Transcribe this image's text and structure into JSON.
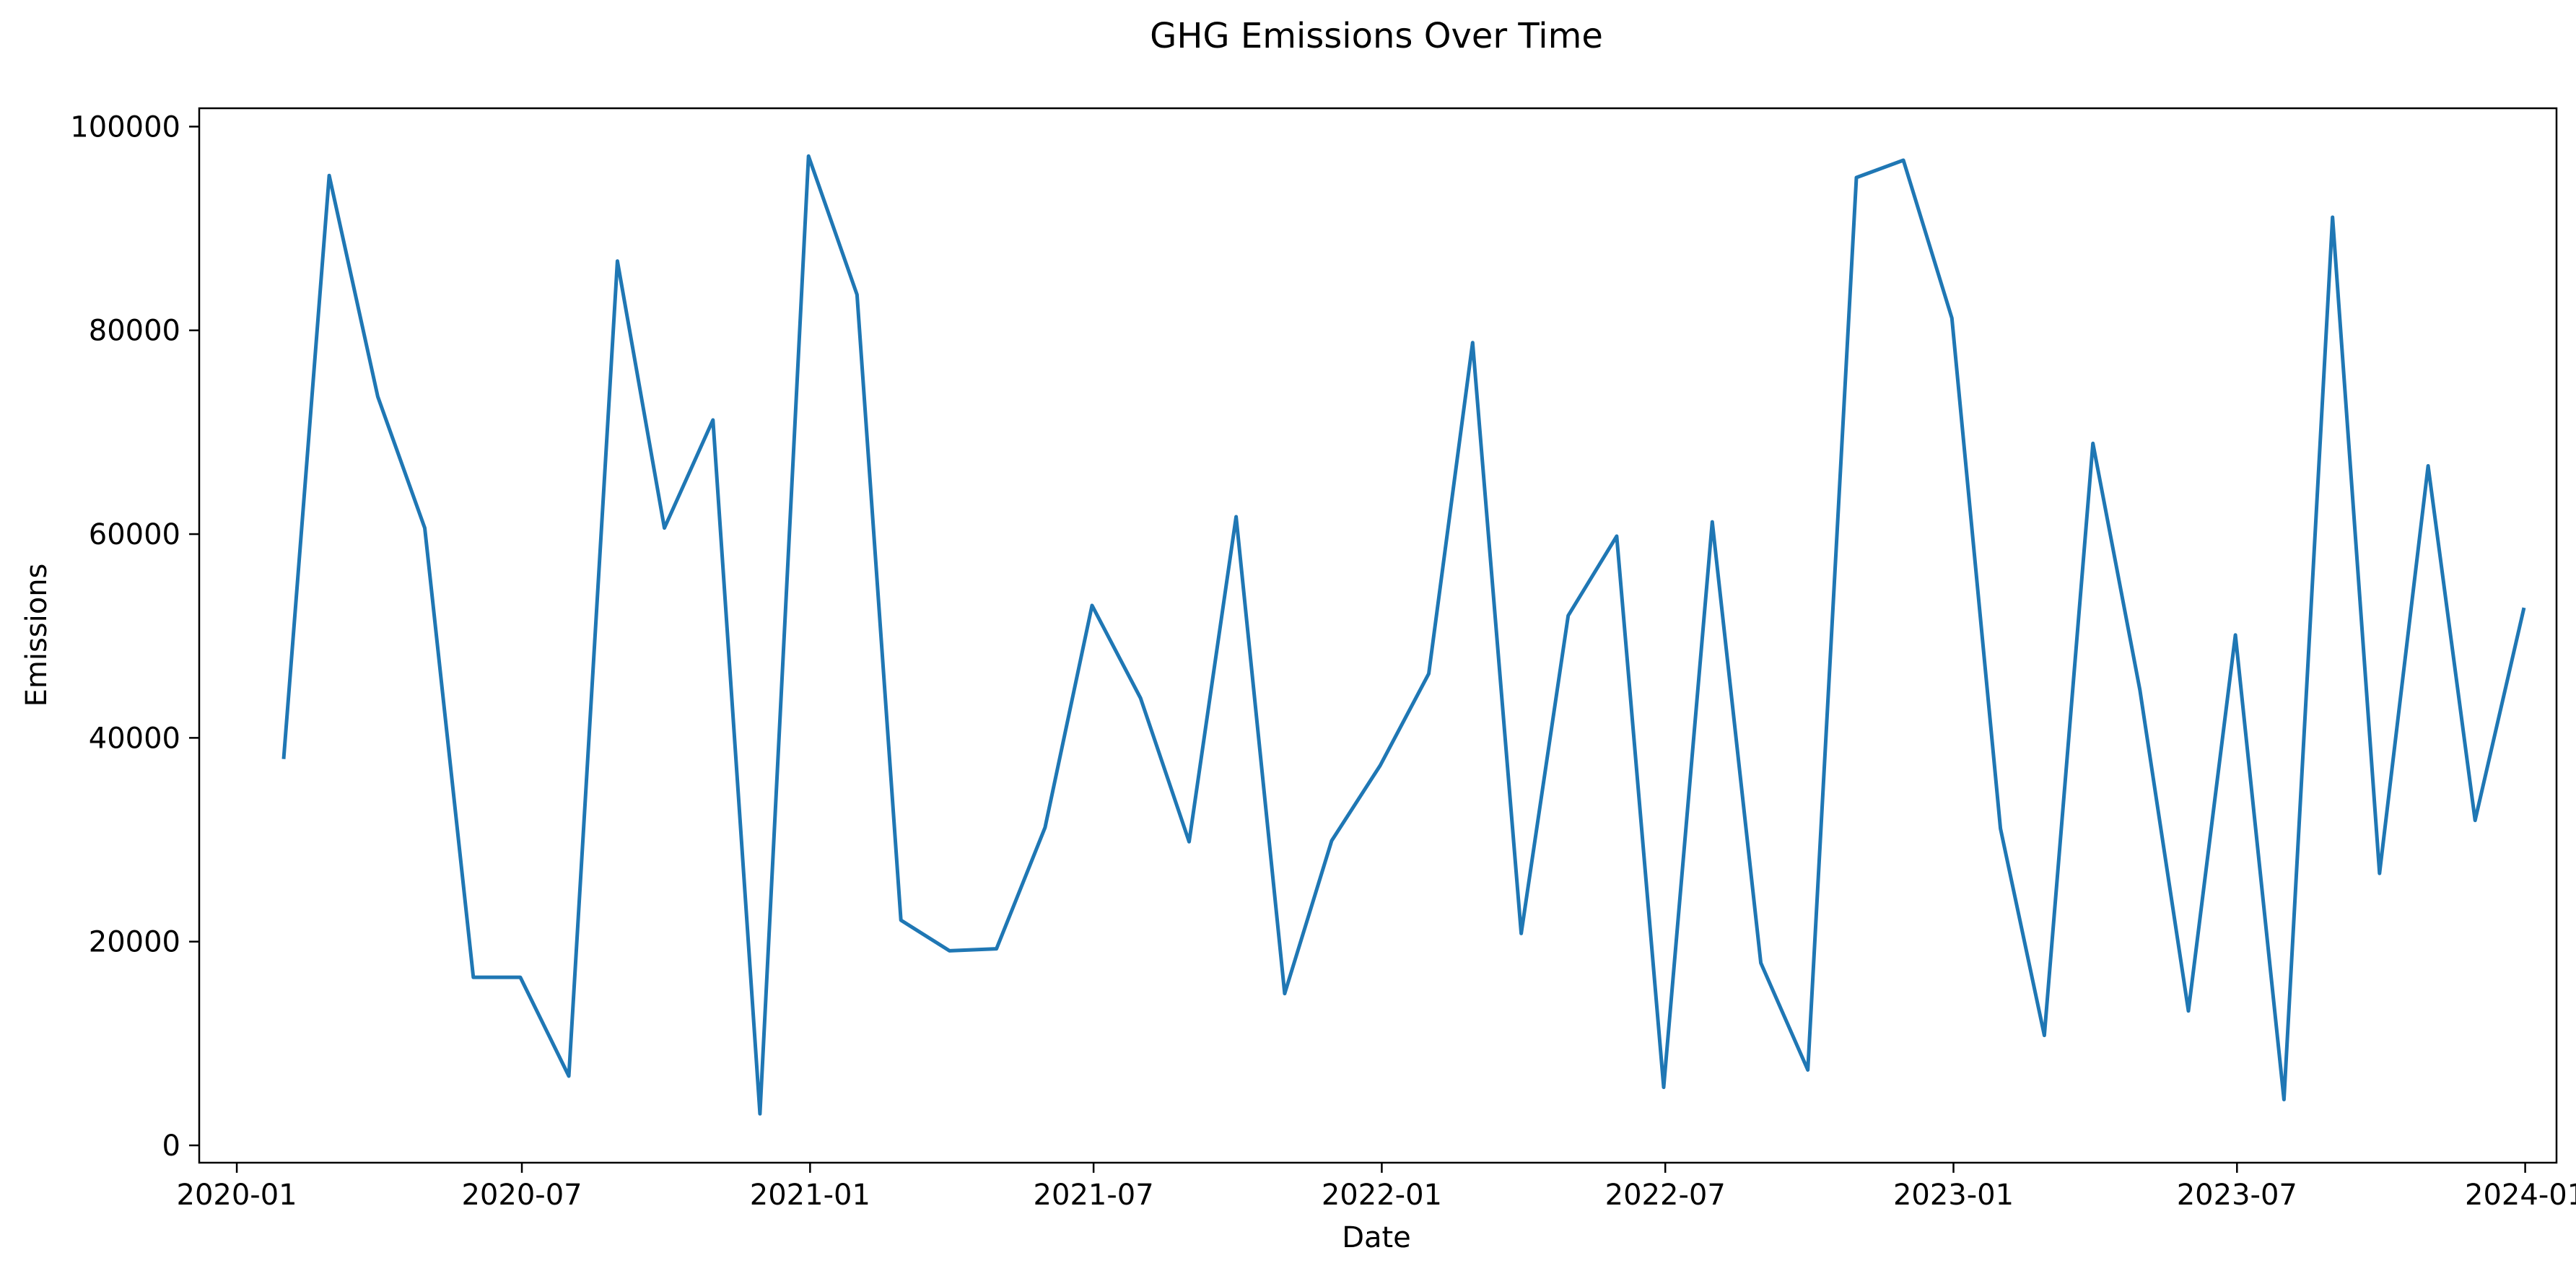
{
  "chart_data": {
    "type": "line",
    "title": "GHG Emissions Over Time",
    "xlabel": "Date",
    "ylabel": "Emissions",
    "xlim": [
      "2019-12-08",
      "2024-01-21"
    ],
    "ylim": [
      -1700,
      101800
    ],
    "x_ticks": [
      "2020-01",
      "2020-07",
      "2021-01",
      "2021-07",
      "2022-01",
      "2022-07",
      "2023-01",
      "2023-07",
      "2024-01"
    ],
    "y_ticks": [
      0,
      20000,
      40000,
      60000,
      80000,
      100000
    ],
    "grid": false,
    "legend": "none",
    "series": [
      {
        "color": "#1f77b4",
        "x": [
          "2020-01-31",
          "2020-02-29",
          "2020-03-31",
          "2020-04-30",
          "2020-05-31",
          "2020-06-30",
          "2020-07-31",
          "2020-08-31",
          "2020-09-30",
          "2020-10-31",
          "2020-11-30",
          "2020-12-31",
          "2021-01-31",
          "2021-02-28",
          "2021-03-31",
          "2021-04-30",
          "2021-05-31",
          "2021-06-30",
          "2021-07-31",
          "2021-08-31",
          "2021-09-30",
          "2021-10-31",
          "2021-11-30",
          "2021-12-31",
          "2022-01-31",
          "2022-02-28",
          "2022-03-31",
          "2022-04-30",
          "2022-05-31",
          "2022-06-30",
          "2022-07-31",
          "2022-08-31",
          "2022-09-30",
          "2022-10-31",
          "2022-11-30",
          "2022-12-31",
          "2023-01-31",
          "2023-02-28",
          "2023-03-31",
          "2023-04-30",
          "2023-05-31",
          "2023-06-30",
          "2023-07-31",
          "2023-08-31",
          "2023-09-30",
          "2023-10-31",
          "2023-11-30",
          "2023-12-31"
        ],
        "y": [
          38100,
          95200,
          73500,
          60600,
          16500,
          16500,
          6800,
          86800,
          60600,
          71200,
          3100,
          97100,
          83500,
          22100,
          19100,
          19300,
          31200,
          53000,
          43900,
          29800,
          61700,
          14900,
          29900,
          37300,
          46300,
          78800,
          20800,
          52000,
          59800,
          5700,
          61200,
          17900,
          7400,
          95000,
          96700,
          81200,
          31100,
          10800,
          68900,
          44700,
          13200,
          50100,
          4500,
          91100,
          26700,
          66700,
          31900,
          52600
        ]
      }
    ]
  }
}
